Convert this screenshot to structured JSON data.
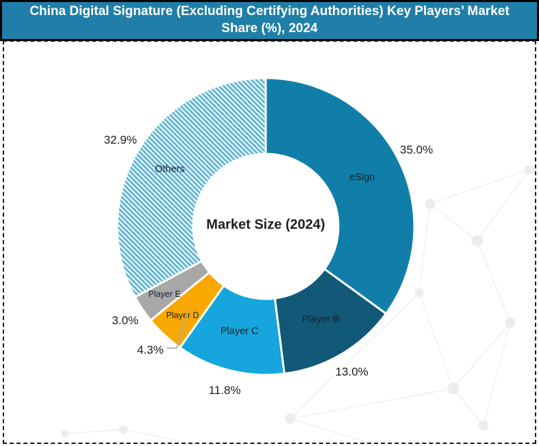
{
  "title": {
    "line1": "China Digital Signature (Excluding Certifying Authorities) Key Players’ Market",
    "line2": "Share (%), 2024"
  },
  "chart_data": {
    "type": "pie",
    "subtype": "donut",
    "title": "China Digital Signature (Excluding Certifying Authorities) Key Players’ Market Share (%), 2024",
    "center_label": "Market Size (2024)",
    "unit": "%",
    "direction": "clockwise",
    "start_angle_deg": 0,
    "legend_position": "none",
    "slices": [
      {
        "label": "eSign",
        "value": 35.0,
        "display": "35.0%",
        "color": "#107EA8",
        "pattern": "solid"
      },
      {
        "label": "Player B",
        "value": 13.0,
        "display": "13.0%",
        "color": "#115977",
        "pattern": "solid"
      },
      {
        "label": "Player C",
        "value": 11.8,
        "display": "11.8%",
        "color": "#16A5DC",
        "pattern": "solid"
      },
      {
        "label": "Player D",
        "value": 4.3,
        "display": "4.3%",
        "color": "#F9A800",
        "pattern": "solid",
        "leader_line": true
      },
      {
        "label": "Player E",
        "value": 3.0,
        "display": "3.0%",
        "color": "#A8A8A8",
        "pattern": "solid"
      },
      {
        "label": "Others",
        "value": 32.9,
        "display": "32.9%",
        "color": "#54AFCC",
        "pattern": "diagonal-hatch"
      }
    ]
  },
  "colors": {
    "title_bg": "#1F7FA8",
    "title_text": "#FFFFFF",
    "frame_dash": "#1A1A1A",
    "hatch_stripe": "#54AFCC",
    "hatch_bg": "#E3F2F8",
    "leader_line": "#ABABAB",
    "decor_network": "#EFEFEF"
  }
}
